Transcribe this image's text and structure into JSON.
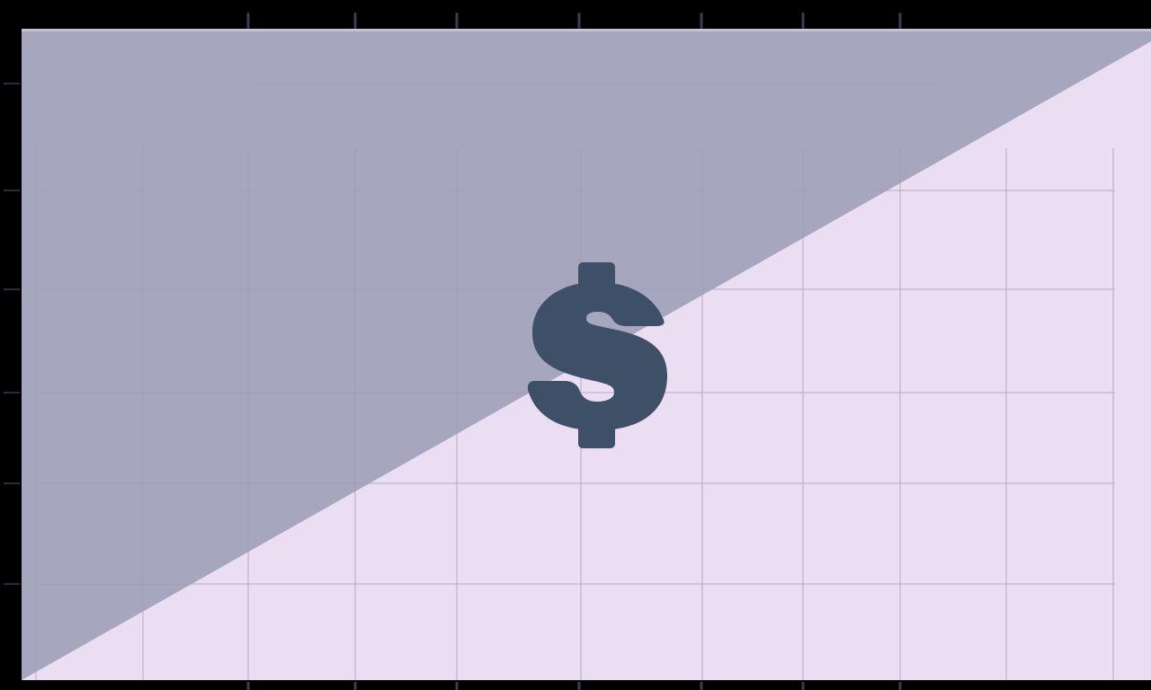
{
  "colors": {
    "background": "#000000",
    "panel_light": "#ebdef2",
    "panel_dark": "#a7a6bf",
    "panel_top_edge": "#c9bfcf",
    "grid_line": "#d2c6de",
    "grid_line_dark": "#9d9cb8",
    "tick_mark": "#3b3b52",
    "symbol": "#3e4f68"
  },
  "illustration": {
    "symbol_icon": "dollar-sign-icon"
  }
}
